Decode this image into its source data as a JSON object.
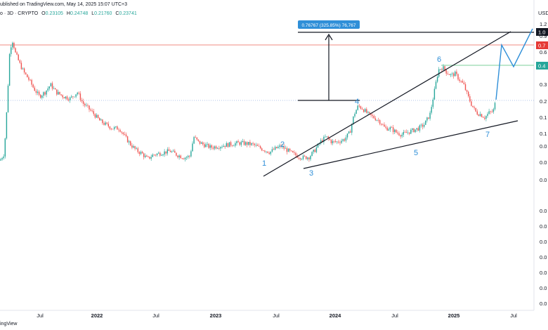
{
  "header": {
    "published": "ublished on TradingView.com, May 14, 2025 15:07 UTC+3",
    "symbol": "o · 3D · CRYPTO",
    "o_label": "O",
    "o_value": "0.23105",
    "h_label": "H",
    "h_value": "0.24748",
    "l_label": "L",
    "l_value": "0.21760",
    "c_label": "C",
    "c_value": "0.23741"
  },
  "footer": {
    "watermark": "ingView"
  },
  "colors": {
    "up": "#26a69a",
    "down": "#ef5350",
    "wave": "#2f8fd8",
    "resistance": "#f28b82",
    "target": "#7ccf9a",
    "tag_black": "#131722",
    "tag_red": "#e53935",
    "tag_green": "#26a69a"
  },
  "chart_data": {
    "type": "candlestick",
    "price_scale_label": "USD",
    "x_ticks": [
      "Jul",
      "2022",
      "Jul",
      "2023",
      "Jul",
      "2024",
      "Jul",
      "2025",
      "Jul"
    ],
    "right_tags": [
      "1.0",
      "0.7",
      "0.4"
    ],
    "y_tick_labels": [
      "1.2",
      "0.9",
      "0.6",
      "0.4",
      "0.3",
      "0.2",
      "0.1",
      "0.1",
      "0.0",
      "0.0",
      "0.0",
      "0.0",
      "0.0",
      "0.0",
      "0.0",
      "0.0",
      "0.0",
      "0.0"
    ],
    "measurement_label": "0.76767 (325.85%) 76,767",
    "wave_labels": [
      "1",
      "2",
      "3",
      "4",
      "5",
      "6",
      "7"
    ],
    "series_path": [
      [
        0,
        0.07
      ],
      [
        6,
        0.08
      ],
      [
        10,
        0.2
      ],
      [
        14,
        0.6
      ],
      [
        18,
        0.7
      ],
      [
        22,
        0.55
      ],
      [
        28,
        0.45
      ],
      [
        34,
        0.38
      ],
      [
        40,
        0.34
      ],
      [
        48,
        0.28
      ],
      [
        56,
        0.24
      ],
      [
        64,
        0.26
      ],
      [
        72,
        0.3
      ],
      [
        80,
        0.26
      ],
      [
        90,
        0.24
      ],
      [
        100,
        0.23
      ],
      [
        110,
        0.26
      ],
      [
        118,
        0.21
      ],
      [
        126,
        0.19
      ],
      [
        134,
        0.17
      ],
      [
        142,
        0.15
      ],
      [
        150,
        0.14
      ],
      [
        160,
        0.13
      ],
      [
        170,
        0.13
      ],
      [
        178,
        0.11
      ],
      [
        186,
        0.095
      ],
      [
        194,
        0.085
      ],
      [
        202,
        0.08
      ],
      [
        210,
        0.072
      ],
      [
        218,
        0.078
      ],
      [
        226,
        0.08
      ],
      [
        234,
        0.082
      ],
      [
        242,
        0.084
      ],
      [
        252,
        0.078
      ],
      [
        262,
        0.074
      ],
      [
        270,
        0.076
      ],
      [
        276,
        0.11
      ],
      [
        282,
        0.1
      ],
      [
        290,
        0.095
      ],
      [
        300,
        0.09
      ],
      [
        310,
        0.092
      ],
      [
        320,
        0.094
      ],
      [
        330,
        0.096
      ],
      [
        340,
        0.098
      ],
      [
        350,
        0.097
      ],
      [
        360,
        0.095
      ],
      [
        368,
        0.09
      ],
      [
        376,
        0.086
      ],
      [
        384,
        0.082
      ],
      [
        392,
        0.088
      ],
      [
        400,
        0.092
      ],
      [
        408,
        0.086
      ],
      [
        416,
        0.08
      ],
      [
        424,
        0.076
      ],
      [
        432,
        0.074
      ],
      [
        440,
        0.075
      ],
      [
        448,
        0.085
      ],
      [
        456,
        0.1
      ],
      [
        464,
        0.11
      ],
      [
        472,
        0.1
      ],
      [
        480,
        0.1
      ],
      [
        490,
        0.105
      ],
      [
        498,
        0.12
      ],
      [
        504,
        0.17
      ],
      [
        510,
        0.2
      ],
      [
        516,
        0.19
      ],
      [
        524,
        0.17
      ],
      [
        532,
        0.16
      ],
      [
        540,
        0.15
      ],
      [
        548,
        0.13
      ],
      [
        556,
        0.13
      ],
      [
        564,
        0.12
      ],
      [
        572,
        0.115
      ],
      [
        580,
        0.12
      ],
      [
        588,
        0.125
      ],
      [
        596,
        0.13
      ],
      [
        604,
        0.14
      ],
      [
        612,
        0.17
      ],
      [
        618,
        0.26
      ],
      [
        624,
        0.4
      ],
      [
        630,
        0.42
      ],
      [
        636,
        0.38
      ],
      [
        642,
        0.36
      ],
      [
        648,
        0.37
      ],
      [
        654,
        0.33
      ],
      [
        660,
        0.3
      ],
      [
        666,
        0.24
      ],
      [
        672,
        0.2
      ],
      [
        678,
        0.175
      ],
      [
        684,
        0.17
      ],
      [
        690,
        0.16
      ],
      [
        696,
        0.175
      ],
      [
        702,
        0.18
      ],
      [
        706,
        0.225
      ]
    ],
    "projection": [
      [
        706,
        0.225
      ],
      [
        714,
        0.65
      ],
      [
        731,
        0.42
      ],
      [
        758,
        1.05
      ]
    ]
  }
}
